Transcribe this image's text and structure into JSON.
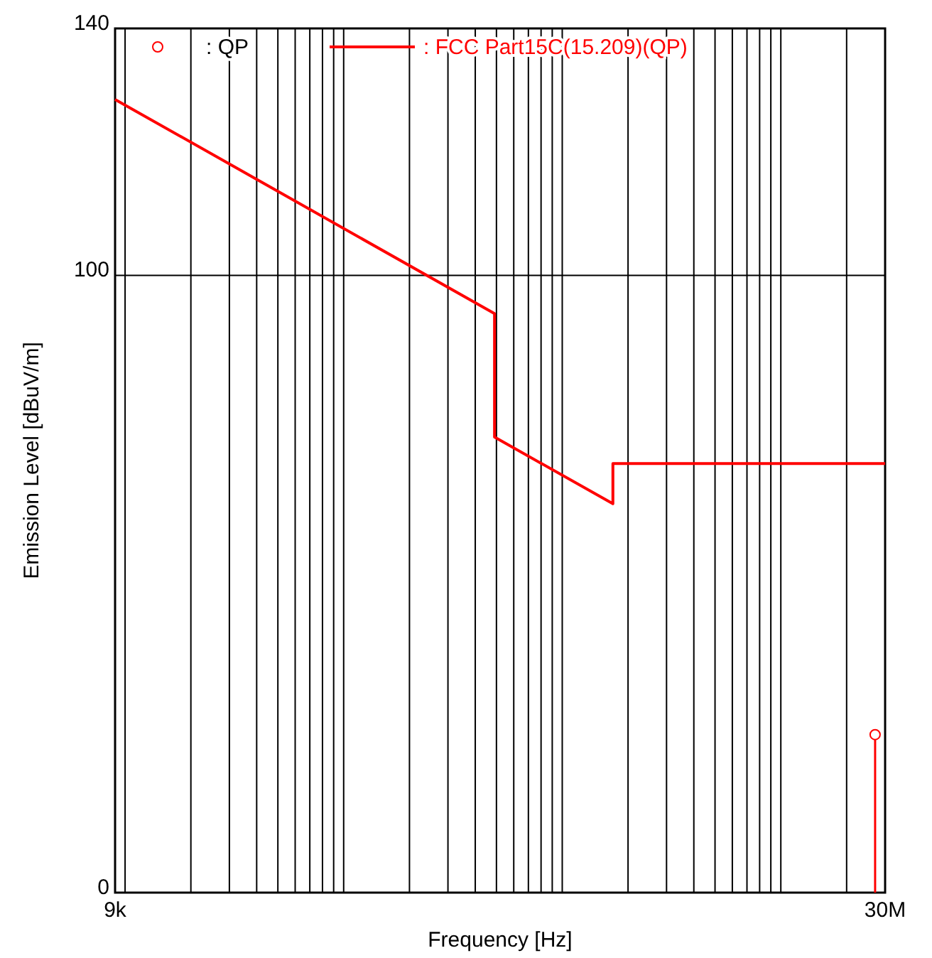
{
  "chart_data": {
    "type": "line",
    "xlabel": "Frequency [Hz]",
    "ylabel": "Emission Level [dBuV/m]",
    "log": "x",
    "xlim": [
      9000,
      30000000
    ],
    "ylim": [
      0,
      140
    ],
    "xticks": [
      {
        "value": 9000,
        "label": "9k"
      },
      {
        "value": 10000,
        "label": null
      },
      {
        "value": 20000,
        "label": null
      },
      {
        "value": 30000,
        "label": null
      },
      {
        "value": 40000,
        "label": null
      },
      {
        "value": 50000,
        "label": null
      },
      {
        "value": 60000,
        "label": null
      },
      {
        "value": 70000,
        "label": null
      },
      {
        "value": 80000,
        "label": null
      },
      {
        "value": 90000,
        "label": null
      },
      {
        "value": 100000,
        "label": null
      },
      {
        "value": 200000,
        "label": null
      },
      {
        "value": 300000,
        "label": null
      },
      {
        "value": 400000,
        "label": null
      },
      {
        "value": 500000,
        "label": null
      },
      {
        "value": 600000,
        "label": null
      },
      {
        "value": 700000,
        "label": null
      },
      {
        "value": 800000,
        "label": null
      },
      {
        "value": 900000,
        "label": null
      },
      {
        "value": 1000000,
        "label": null
      },
      {
        "value": 2000000,
        "label": null
      },
      {
        "value": 3000000,
        "label": null
      },
      {
        "value": 4000000,
        "label": null
      },
      {
        "value": 5000000,
        "label": null
      },
      {
        "value": 6000000,
        "label": null
      },
      {
        "value": 7000000,
        "label": null
      },
      {
        "value": 8000000,
        "label": null
      },
      {
        "value": 9000000,
        "label": null
      },
      {
        "value": 10000000,
        "label": null
      },
      {
        "value": 20000000,
        "label": null
      },
      {
        "value": 30000000,
        "label": "30M"
      }
    ],
    "yticks": [
      0,
      100,
      140
    ],
    "grid": true,
    "legend": "top",
    "series": [
      {
        "name": ": QP",
        "type": "lollipop",
        "color": "#ff0000",
        "marker": "circle",
        "x": [
          27000000
        ],
        "values": [
          25.6
        ]
      },
      {
        "name": ": FCC Part15C(15.209)(QP)",
        "color": "#ff0000",
        "marker": "none",
        "line_style": "solid",
        "x": [
          9000,
          490000,
          490000,
          1705000,
          1705000,
          30000000
        ],
        "values": [
          128.5,
          93.8,
          73.8,
          63.0,
          69.5,
          69.5
        ]
      }
    ]
  }
}
